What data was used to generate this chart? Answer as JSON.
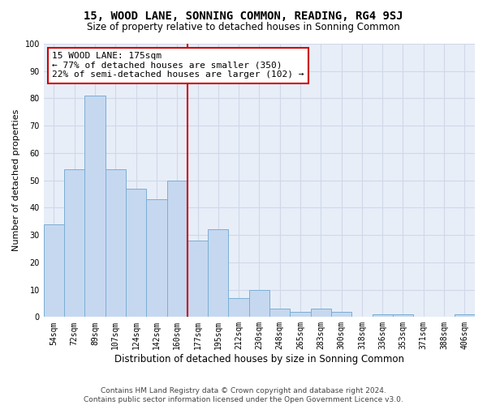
{
  "title": "15, WOOD LANE, SONNING COMMON, READING, RG4 9SJ",
  "subtitle": "Size of property relative to detached houses in Sonning Common",
  "xlabel": "Distribution of detached houses by size in Sonning Common",
  "ylabel": "Number of detached properties",
  "categories": [
    "54sqm",
    "72sqm",
    "89sqm",
    "107sqm",
    "124sqm",
    "142sqm",
    "160sqm",
    "177sqm",
    "195sqm",
    "212sqm",
    "230sqm",
    "248sqm",
    "265sqm",
    "283sqm",
    "300sqm",
    "318sqm",
    "336sqm",
    "353sqm",
    "371sqm",
    "388sqm",
    "406sqm"
  ],
  "values": [
    34,
    54,
    81,
    54,
    47,
    43,
    50,
    28,
    32,
    7,
    10,
    3,
    2,
    3,
    2,
    0,
    1,
    1,
    0,
    0,
    1
  ],
  "bar_color": "#c5d8f0",
  "bar_edge_color": "#7baed4",
  "vline_x_index": 7,
  "vline_color": "#cc0000",
  "annotation_line1": "15 WOOD LANE: 175sqm",
  "annotation_line2": "← 77% of detached houses are smaller (350)",
  "annotation_line3": "22% of semi-detached houses are larger (102) →",
  "annotation_box_color": "#ffffff",
  "annotation_box_edge": "#cc0000",
  "ylim": [
    0,
    100
  ],
  "yticks": [
    0,
    10,
    20,
    30,
    40,
    50,
    60,
    70,
    80,
    90,
    100
  ],
  "grid_color": "#d0d8e8",
  "bg_color": "#e8eef8",
  "footer1": "Contains HM Land Registry data © Crown copyright and database right 2024.",
  "footer2": "Contains public sector information licensed under the Open Government Licence v3.0.",
  "title_fontsize": 10,
  "subtitle_fontsize": 8.5,
  "xlabel_fontsize": 8.5,
  "ylabel_fontsize": 8,
  "tick_fontsize": 7,
  "annotation_fontsize": 8,
  "footer_fontsize": 6.5
}
